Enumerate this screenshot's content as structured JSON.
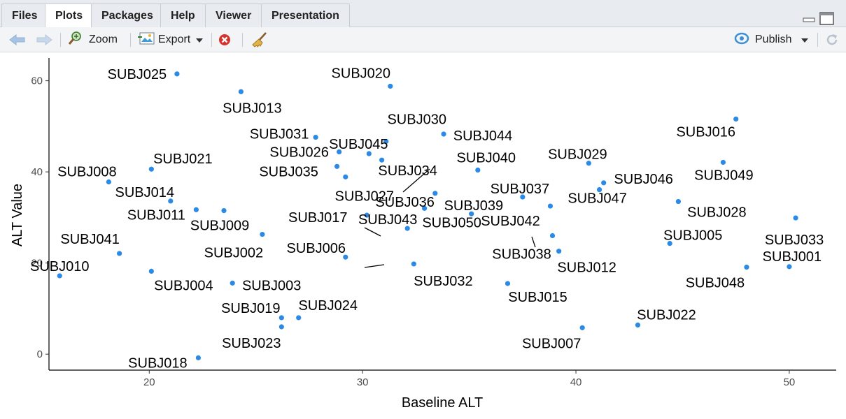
{
  "tabs": [
    {
      "label": "Files",
      "active": false
    },
    {
      "label": "Plots",
      "active": true
    },
    {
      "label": "Packages",
      "active": false
    },
    {
      "label": "Help",
      "active": false
    },
    {
      "label": "Viewer",
      "active": false
    },
    {
      "label": "Presentation",
      "active": false
    }
  ],
  "toolbar": {
    "zoom_label": "Zoom",
    "export_label": "Export",
    "publish_label": "Publish",
    "icons": [
      "back-arrow-icon",
      "forward-arrow-icon",
      "zoom-icon",
      "export-icon",
      "remove-plot-icon",
      "broom-icon",
      "publish-icon",
      "refresh-icon"
    ]
  },
  "colors": {
    "point": "#2b8ae5",
    "axis": "#000000",
    "tick_label": "#4d4d4d"
  },
  "chart_data": {
    "type": "scatter",
    "xlabel": "Baseline ALT",
    "ylabel": "ALT Value",
    "xlim": [
      15.3,
      52.2
    ],
    "ylim": [
      -3.5,
      65
    ],
    "xticks": [
      20,
      30,
      40,
      50
    ],
    "yticks": [
      0,
      20,
      40,
      60
    ],
    "grid": false,
    "points": [
      {
        "label": "SUBJ025",
        "x": 21.3,
        "y": 61.5
      },
      {
        "label": "SUBJ020",
        "x": 31.3,
        "y": 58.8
      },
      {
        "label": "SUBJ013",
        "x": 24.3,
        "y": 57.6
      },
      {
        "label": "SUBJ016",
        "x": 47.5,
        "y": 51.6
      },
      {
        "label": "SUBJ044",
        "x": 33.8,
        "y": 48.3
      },
      {
        "label": "SUBJ031",
        "x": 27.8,
        "y": 47.6
      },
      {
        "label": "SUBJ030",
        "x": 31.1,
        "y": 46.7
      },
      {
        "label": "SUBJ026",
        "x": 28.9,
        "y": 44.4
      },
      {
        "label": "SUBJ045",
        "x": 30.3,
        "y": 44.0
      },
      {
        "label": "SUBJ034",
        "x": 30.9,
        "y": 42.6
      },
      {
        "label": "SUBJ049",
        "x": 46.9,
        "y": 42.1
      },
      {
        "label": "SUBJ029",
        "x": 40.6,
        "y": 41.9
      },
      {
        "label": "SUBJ035",
        "x": 28.8,
        "y": 41.2
      },
      {
        "label": "SUBJ021",
        "x": 20.1,
        "y": 40.6
      },
      {
        "label": "SUBJ040",
        "x": 35.4,
        "y": 40.4
      },
      {
        "label": "SUBJ027",
        "x": 29.2,
        "y": 38.9
      },
      {
        "label": "SUBJ008",
        "x": 18.1,
        "y": 37.8
      },
      {
        "label": "SUBJ046",
        "x": 41.3,
        "y": 37.6
      },
      {
        "label": "SUBJ047",
        "x": 41.1,
        "y": 36.1
      },
      {
        "label": "SUBJ039",
        "x": 33.4,
        "y": 35.3
      },
      {
        "label": "SUBJ037",
        "x": 37.5,
        "y": 34.5
      },
      {
        "label": "SUBJ014",
        "x": 21.0,
        "y": 33.6
      },
      {
        "label": "SUBJ028",
        "x": 44.8,
        "y": 33.5
      },
      {
        "label": "SUBJ042",
        "x": 38.8,
        "y": 32.5
      },
      {
        "label": "SUBJ050",
        "x": 32.9,
        "y": 32.0
      },
      {
        "label": "SUBJ011",
        "x": 22.2,
        "y": 31.7
      },
      {
        "label": "SUBJ009",
        "x": 23.5,
        "y": 31.5
      },
      {
        "label": "SUBJ036",
        "x": 35.1,
        "y": 30.8
      },
      {
        "label": "SUBJ017",
        "x": 30.2,
        "y": 30.5
      },
      {
        "label": "SUBJ033",
        "x": 50.3,
        "y": 29.9
      },
      {
        "label": "SUBJ043",
        "x": 32.1,
        "y": 27.6
      },
      {
        "label": "SUBJ002",
        "x": 25.3,
        "y": 26.3
      },
      {
        "label": "SUBJ038",
        "x": 38.9,
        "y": 26.0
      },
      {
        "label": "SUBJ005",
        "x": 44.4,
        "y": 24.3
      },
      {
        "label": "SUBJ012",
        "x": 39.2,
        "y": 22.6
      },
      {
        "label": "SUBJ041",
        "x": 18.6,
        "y": 22.1
      },
      {
        "label": "SUBJ006",
        "x": 29.2,
        "y": 21.3
      },
      {
        "label": "SUBJ032",
        "x": 32.4,
        "y": 19.8
      },
      {
        "label": "SUBJ001",
        "x": 50.0,
        "y": 19.2
      },
      {
        "label": "SUBJ048",
        "x": 48.0,
        "y": 19.1
      },
      {
        "label": "SUBJ004",
        "x": 20.1,
        "y": 18.2
      },
      {
        "label": "SUBJ010",
        "x": 15.8,
        "y": 17.2
      },
      {
        "label": "SUBJ003",
        "x": 23.9,
        "y": 15.6
      },
      {
        "label": "SUBJ015",
        "x": 36.8,
        "y": 15.5
      },
      {
        "label": "SUBJ019",
        "x": 26.2,
        "y": 8.0
      },
      {
        "label": "SUBJ024",
        "x": 27.0,
        "y": 8.0
      },
      {
        "label": "SUBJ022",
        "x": 42.9,
        "y": 6.4
      },
      {
        "label": "SUBJ023",
        "x": 26.2,
        "y": 6.0
      },
      {
        "label": "SUBJ007",
        "x": 40.3,
        "y": 5.8
      },
      {
        "label": "SUBJ018",
        "x": 22.3,
        "y": -0.8
      }
    ]
  }
}
